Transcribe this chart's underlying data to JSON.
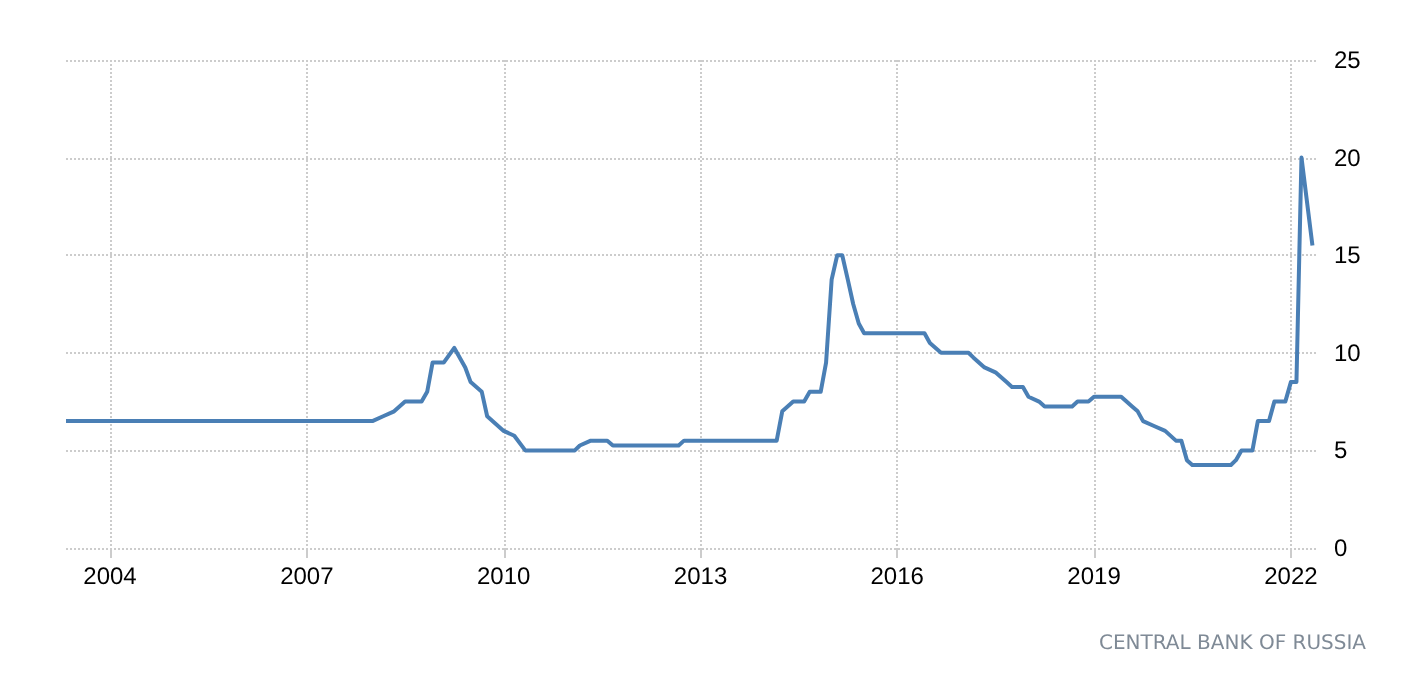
{
  "chart_data": {
    "type": "line",
    "x": [
      "2003-05",
      "2008-01",
      "2008-03",
      "2008-05",
      "2008-07",
      "2008-10",
      "2008-11",
      "2008-12",
      "2009-02",
      "2009-04",
      "2009-06",
      "2009-07",
      "2009-09",
      "2009-10",
      "2010-01",
      "2010-03",
      "2010-05",
      "2011-02",
      "2011-03",
      "2011-05",
      "2011-08",
      "2011-09",
      "2012-09",
      "2012-10",
      "2014-03",
      "2014-04",
      "2014-06",
      "2014-08",
      "2014-09",
      "2014-11",
      "2014-12",
      "2015-01",
      "2015-02",
      "2015-03",
      "2015-04",
      "2015-05",
      "2015-06",
      "2015-07",
      "2016-06",
      "2016-07",
      "2016-09",
      "2017-02",
      "2017-03",
      "2017-05",
      "2017-07",
      "2017-09",
      "2017-10",
      "2017-12",
      "2018-01",
      "2018-03",
      "2018-04",
      "2018-09",
      "2018-10",
      "2018-12",
      "2019-01",
      "2019-06",
      "2019-07",
      "2019-08",
      "2019-09",
      "2019-10",
      "2019-12",
      "2020-02",
      "2020-04",
      "2020-05",
      "2020-06",
      "2020-07",
      "2021-02",
      "2021-03",
      "2021-04",
      "2021-06",
      "2021-07",
      "2021-09",
      "2021-10",
      "2021-12",
      "2022-01",
      "2022-02",
      "2022-03",
      "2022-05"
    ],
    "series": [
      {
        "color": "#4a7fb5",
        "values": [
          6.5,
          6.5,
          6.75,
          7.0,
          7.5,
          7.5,
          8.0,
          9.5,
          9.5,
          10.25,
          9.25,
          8.5,
          8.0,
          6.75,
          6.0,
          5.75,
          5.0,
          5.0,
          5.25,
          5.5,
          5.5,
          5.25,
          5.25,
          5.5,
          5.5,
          7.0,
          7.5,
          7.5,
          8.0,
          8.0,
          9.5,
          13.75,
          15,
          15,
          13.75,
          12.5,
          11.5,
          11,
          11,
          10.5,
          10,
          10,
          9.75,
          9.25,
          9.0,
          8.5,
          8.25,
          8.25,
          7.75,
          7.5,
          7.25,
          7.25,
          7.5,
          7.5,
          7.75,
          7.75,
          7.5,
          7.25,
          7.0,
          6.5,
          6.25,
          6.0,
          5.5,
          5.5,
          4.5,
          4.25,
          4.25,
          4.5,
          5.0,
          5.0,
          6.5,
          6.5,
          7.5,
          7.5,
          8.5,
          8.5,
          20,
          15.5
        ]
      }
    ],
    "xlim": [
      "2003-05",
      "2022-06"
    ],
    "xticks": [
      "2004",
      "2007",
      "2010",
      "2013",
      "2016",
      "2019",
      "2022"
    ],
    "ylim": [
      0,
      25
    ],
    "yticks": [
      0,
      5,
      10,
      15,
      20,
      25
    ],
    "grid": true,
    "marker": "none",
    "line_style": "solid",
    "annotations": [
      "CENTRAL BANK OF RUSSIA"
    ]
  }
}
